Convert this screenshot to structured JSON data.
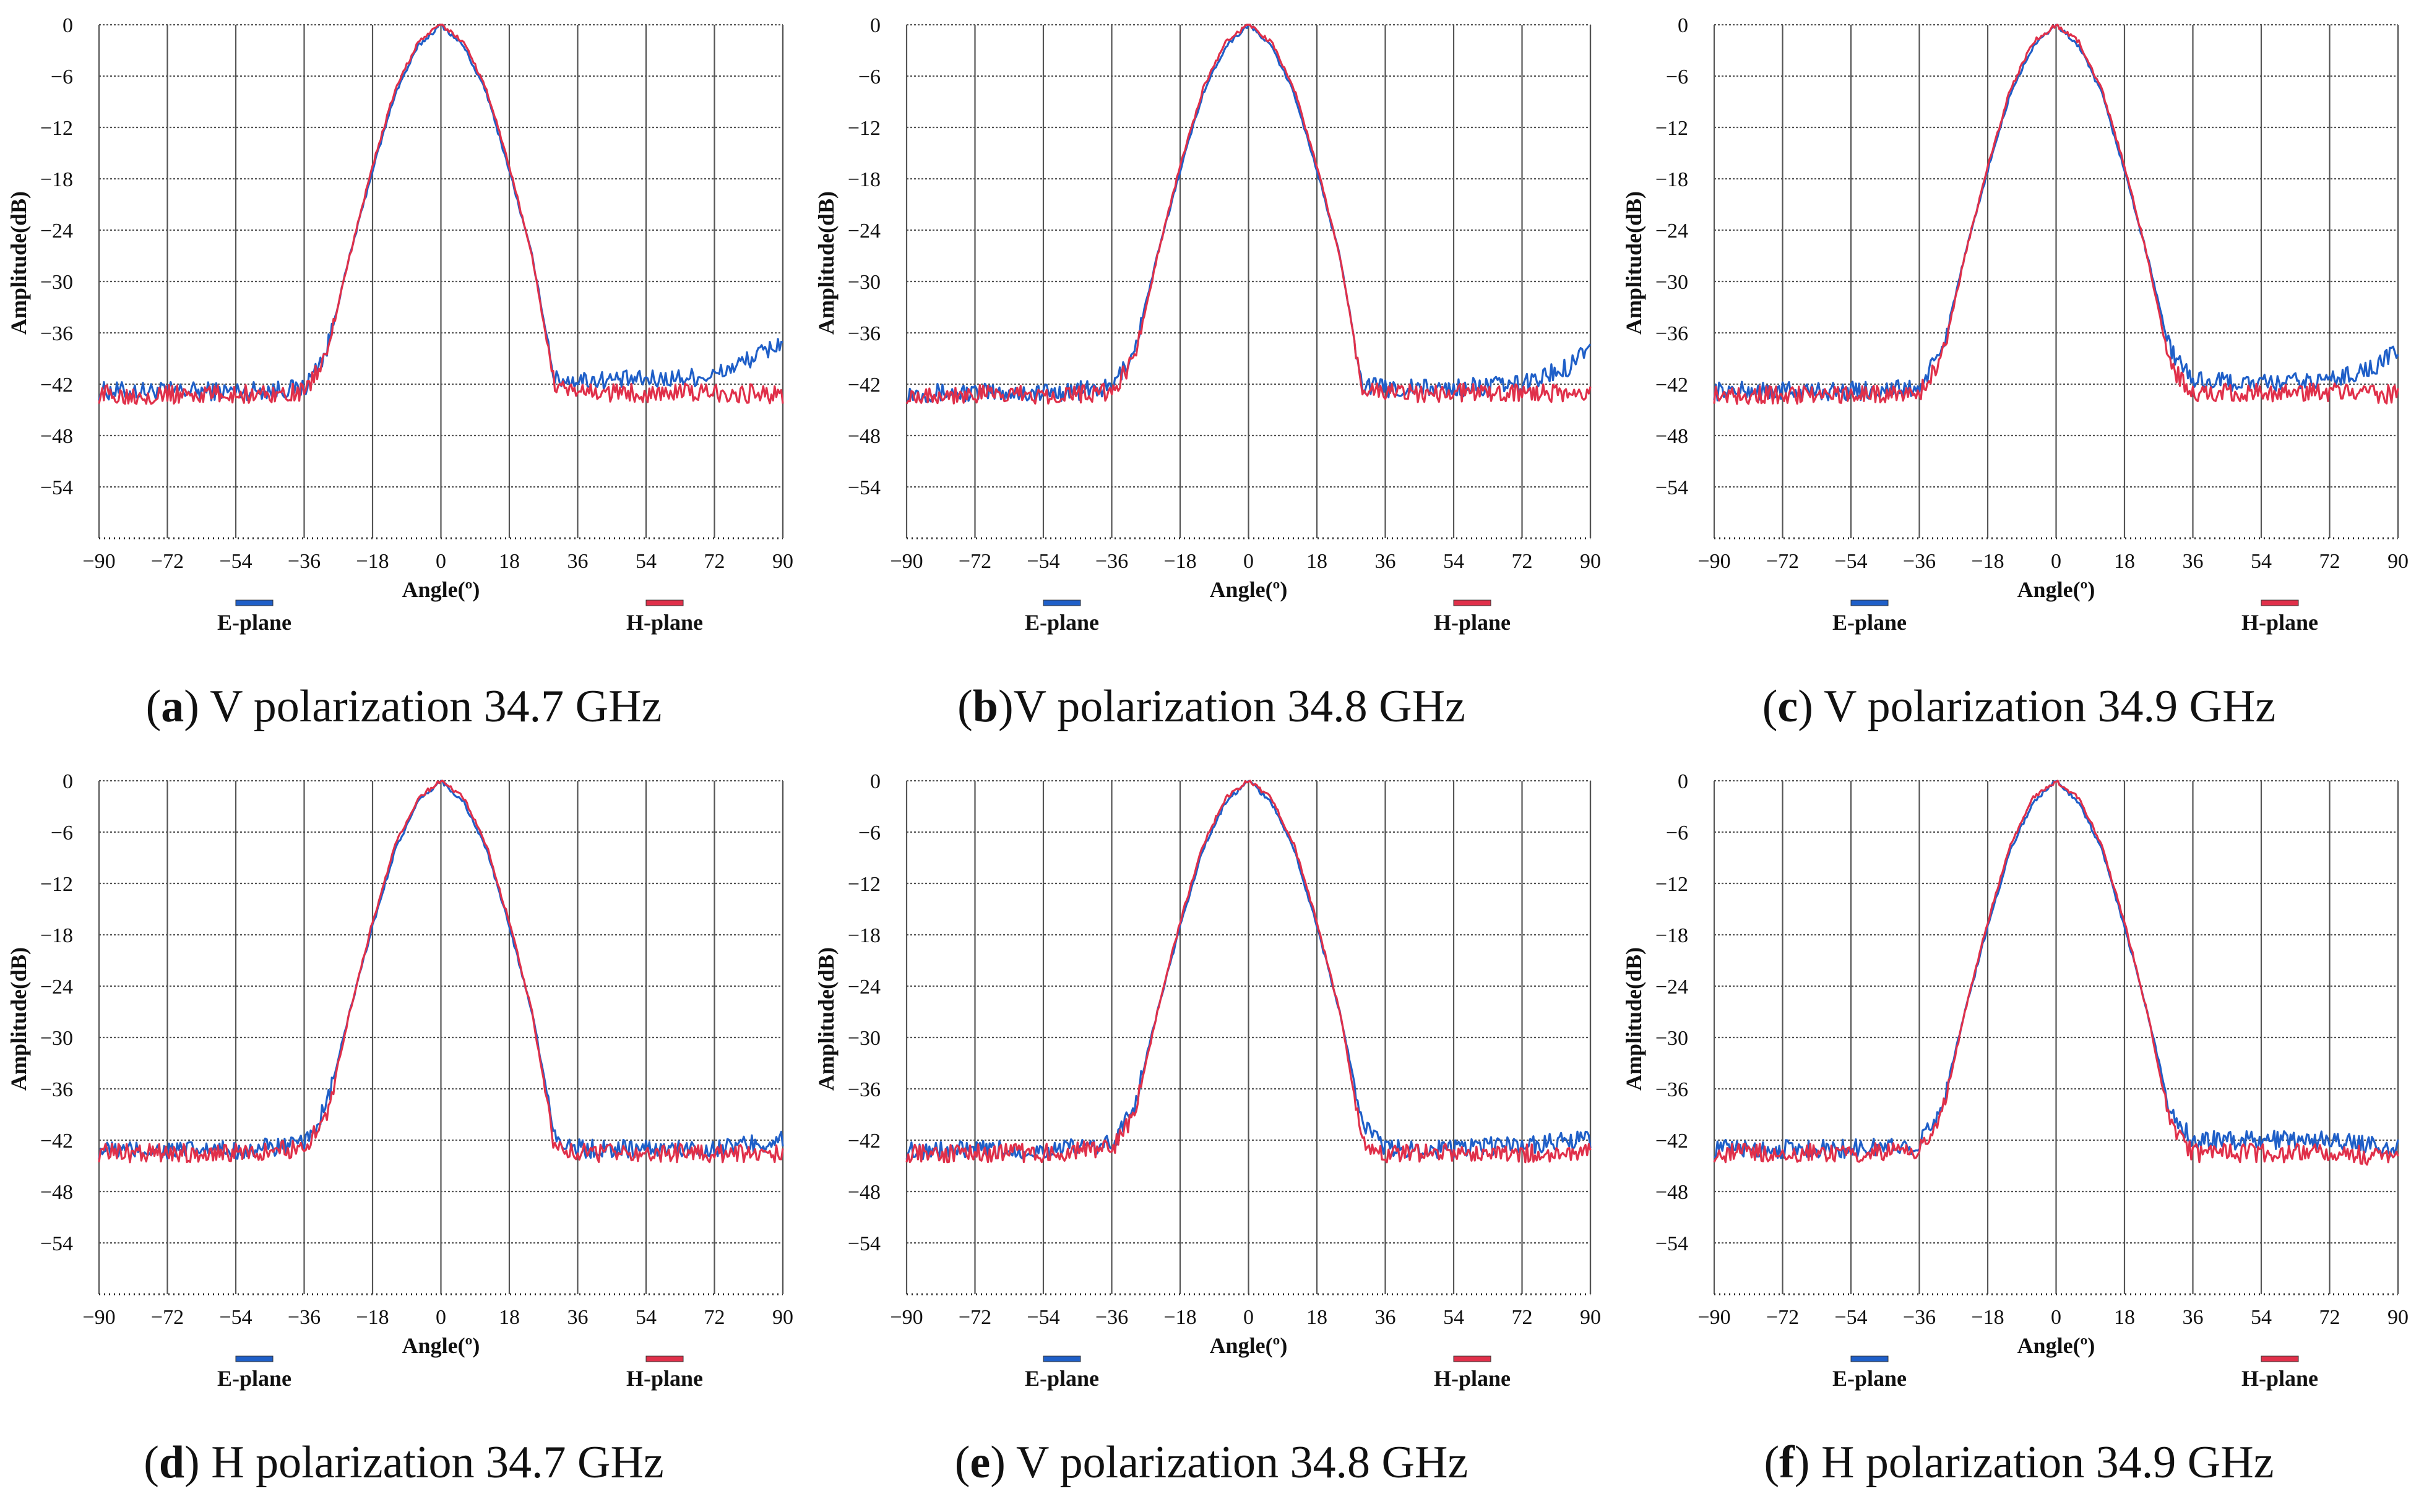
{
  "colors": {
    "e_plane": "#1f5fc8",
    "h_plane": "#e0304a",
    "grid": "#555555",
    "axis": "#222222"
  },
  "chart_data": [
    {
      "type": "line",
      "panel_letter": "a",
      "title": "V polarization 34.7 GHz",
      "xlabel": "Angle(º)",
      "ylabel": "Amplitude(dB)",
      "xlim": [
        -90,
        90
      ],
      "ylim": [
        -60,
        0
      ],
      "x_ticks": [
        "−90",
        "−72",
        "−54",
        "−36",
        "−18",
        "0",
        "18",
        "36",
        "54",
        "72",
        "90"
      ],
      "y_ticks": [
        "0",
        "-6",
        "-12",
        "-18",
        "-24",
        "-30",
        "-36",
        "-42",
        "-48",
        "-54"
      ],
      "grid": true,
      "legend": [
        "E-plane",
        "H-plane"
      ],
      "series": [
        {
          "name": "E-plane",
          "x": [
            -90,
            -54,
            -36,
            -30,
            -24,
            -18,
            -12,
            -6,
            0,
            6,
            12,
            18,
            24,
            30,
            36,
            54,
            72,
            84,
            90
          ],
          "values": [
            -42.8,
            -42.8,
            -42.5,
            -38,
            -27,
            -17,
            -8,
            -2.5,
            0,
            -2.5,
            -8,
            -17,
            -27,
            -41.5,
            -41.5,
            -41.5,
            -41,
            -38.5,
            -37
          ]
        },
        {
          "name": "H-plane",
          "x": [
            -90,
            -54,
            -36,
            -30,
            -24,
            -18,
            -12,
            -6,
            0,
            6,
            12,
            18,
            24,
            30,
            36,
            54,
            72,
            90
          ],
          "values": [
            -43.2,
            -43.2,
            -43,
            -38.5,
            -27,
            -16.5,
            -7.5,
            -2,
            0,
            -2,
            -7.5,
            -16.5,
            -27,
            -42.5,
            -43,
            -43,
            -43,
            -43.2
          ]
        }
      ]
    },
    {
      "type": "line",
      "panel_letter": "b",
      "title": "V polarization 34.8 GHz",
      "xlabel": "Angle(º)",
      "ylabel": "Amplitude(dB)",
      "xlim": [
        -90,
        90
      ],
      "ylim": [
        -60,
        0
      ],
      "x_ticks": [
        "−90",
        "−72",
        "−54",
        "−36",
        "−18",
        "0",
        "18",
        "36",
        "54",
        "72",
        "90"
      ],
      "y_ticks": [
        "0",
        "-6",
        "-12",
        "-18",
        "-24",
        "-30",
        "-36",
        "-42",
        "-48",
        "-54"
      ],
      "grid": true,
      "legend": [
        "E-plane",
        "H-plane"
      ],
      "series": [
        {
          "name": "E-plane",
          "x": [
            -90,
            -54,
            -36,
            -30,
            -24,
            -18,
            -12,
            -6,
            0,
            6,
            12,
            18,
            24,
            30,
            36,
            54,
            72,
            84,
            90
          ],
          "values": [
            -43,
            -43,
            -42.5,
            -38,
            -27,
            -17,
            -8,
            -2.5,
            0,
            -2.5,
            -8,
            -17,
            -27,
            -42,
            -42.5,
            -42.5,
            -42,
            -40,
            -37
          ]
        },
        {
          "name": "H-plane",
          "x": [
            -90,
            -54,
            -36,
            -30,
            -24,
            -18,
            -12,
            -6,
            0,
            6,
            12,
            18,
            24,
            30,
            36,
            54,
            72,
            90
          ],
          "values": [
            -43.2,
            -43.2,
            -43,
            -39,
            -27,
            -16.5,
            -7.5,
            -2,
            0,
            -2,
            -7.5,
            -16.5,
            -27,
            -42.5,
            -43,
            -43,
            -43,
            -43.2
          ]
        }
      ]
    },
    {
      "type": "line",
      "panel_letter": "c",
      "title": "V polarization 34.9 GHz",
      "xlabel": "Angle(º)",
      "ylabel": "Amplitude(dB)",
      "xlim": [
        -90,
        90
      ],
      "ylim": [
        -60,
        0
      ],
      "x_ticks": [
        "−90",
        "−72",
        "−54",
        "−36",
        "−18",
        "0",
        "18",
        "36",
        "54",
        "72",
        "90"
      ],
      "y_ticks": [
        "0",
        "-6",
        "-12",
        "-18",
        "-24",
        "-30",
        "-36",
        "-42",
        "-48",
        "-54"
      ],
      "grid": true,
      "legend": [
        "E-plane",
        "H-plane"
      ],
      "series": [
        {
          "name": "E-plane",
          "x": [
            -90,
            -54,
            -36,
            -30,
            -24,
            -18,
            -12,
            -6,
            0,
            6,
            12,
            18,
            24,
            30,
            36,
            54,
            72,
            84,
            90
          ],
          "values": [
            -42.8,
            -42.8,
            -42.5,
            -38,
            -27,
            -17,
            -8,
            -2.5,
            0,
            -2.5,
            -8,
            -17,
            -27,
            -38,
            -41.5,
            -42,
            -41.5,
            -40,
            -38
          ]
        },
        {
          "name": "H-plane",
          "x": [
            -90,
            -54,
            -36,
            -30,
            -24,
            -18,
            -12,
            -6,
            0,
            6,
            12,
            18,
            24,
            30,
            36,
            54,
            72,
            90
          ],
          "values": [
            -43.2,
            -43.2,
            -43,
            -39,
            -27,
            -16.5,
            -7.5,
            -2,
            0,
            -2,
            -7.5,
            -16.5,
            -27,
            -40,
            -43,
            -43,
            -43,
            -43.2
          ]
        }
      ]
    },
    {
      "type": "line",
      "panel_letter": "d",
      "title": "H polarization 34.7 GHz",
      "xlabel": "Angle(º)",
      "ylabel": "Amplitude(dB)",
      "xlim": [
        -90,
        90
      ],
      "ylim": [
        -60,
        0
      ],
      "x_ticks": [
        "−90",
        "−72",
        "−54",
        "−36",
        "−18",
        "0",
        "18",
        "36",
        "54",
        "72",
        "90"
      ],
      "y_ticks": [
        "0",
        "-6",
        "-12",
        "-18",
        "-24",
        "-30",
        "-36",
        "-42",
        "-48",
        "-54"
      ],
      "grid": true,
      "legend": [
        "E-plane",
        "H-plane"
      ],
      "series": [
        {
          "name": "E-plane",
          "x": [
            -90,
            -54,
            -36,
            -30,
            -24,
            -18,
            -12,
            -6,
            0,
            6,
            12,
            18,
            24,
            30,
            36,
            54,
            72,
            90
          ],
          "values": [
            -43.2,
            -43.2,
            -42.5,
            -38,
            -27,
            -17,
            -8,
            -2.5,
            0,
            -2.5,
            -8,
            -17,
            -27,
            -41.5,
            -43,
            -43,
            -43,
            -42
          ]
        },
        {
          "name": "H-plane",
          "x": [
            -90,
            -54,
            -36,
            -30,
            -24,
            -18,
            -12,
            -6,
            0,
            6,
            12,
            18,
            24,
            30,
            36,
            54,
            72,
            90
          ],
          "values": [
            -43.5,
            -43.5,
            -43,
            -39,
            -27,
            -16.5,
            -7.5,
            -2,
            0,
            -2,
            -7.5,
            -16.5,
            -27,
            -43,
            -43.5,
            -43.5,
            -43.5,
            -43.5
          ]
        }
      ]
    },
    {
      "type": "line",
      "panel_letter": "e",
      "title": "V polarization 34.8 GHz",
      "xlabel": "Angle(º)",
      "ylabel": "Amplitude(dB)",
      "xlim": [
        -90,
        90
      ],
      "ylim": [
        -60,
        0
      ],
      "x_ticks": [
        "−90",
        "−72",
        "−54",
        "−36",
        "−18",
        "0",
        "18",
        "36",
        "54",
        "72",
        "90"
      ],
      "y_ticks": [
        "0",
        "-6",
        "-12",
        "-18",
        "-24",
        "-30",
        "-36",
        "-42",
        "-48",
        "-54"
      ],
      "grid": true,
      "legend": [
        "E-plane",
        "H-plane"
      ],
      "series": [
        {
          "name": "E-plane",
          "x": [
            -90,
            -54,
            -36,
            -30,
            -24,
            -18,
            -12,
            -6,
            0,
            6,
            12,
            18,
            24,
            30,
            36,
            54,
            72,
            90
          ],
          "values": [
            -43.2,
            -43.2,
            -42.5,
            -38,
            -27,
            -17,
            -8,
            -2.5,
            0,
            -2.5,
            -8,
            -17,
            -27,
            -40,
            -43,
            -43,
            -42.5,
            -42
          ]
        },
        {
          "name": "H-plane",
          "x": [
            -90,
            -54,
            -36,
            -30,
            -24,
            -18,
            -12,
            -6,
            0,
            6,
            12,
            18,
            24,
            30,
            36,
            54,
            72,
            90
          ],
          "values": [
            -43.5,
            -43.5,
            -43,
            -39,
            -27,
            -16.5,
            -7.5,
            -2,
            0,
            -2,
            -7.5,
            -16.5,
            -27,
            -42,
            -43.5,
            -43.5,
            -43.5,
            -43.5
          ]
        }
      ]
    },
    {
      "type": "line",
      "panel_letter": "f",
      "title": "H polarization 34.9 GHz",
      "xlabel": "Angle(º)",
      "ylabel": "Amplitude(dB)",
      "xlim": [
        -90,
        90
      ],
      "ylim": [
        -60,
        0
      ],
      "x_ticks": [
        "−90",
        "−72",
        "−54",
        "−36",
        "−18",
        "0",
        "18",
        "36",
        "54",
        "72",
        "90"
      ],
      "y_ticks": [
        "0",
        "-6",
        "-12",
        "-18",
        "-24",
        "-30",
        "-36",
        "-42",
        "-48",
        "-54"
      ],
      "grid": true,
      "legend": [
        "E-plane",
        "H-plane"
      ],
      "series": [
        {
          "name": "E-plane",
          "x": [
            -90,
            -54,
            -36,
            -30,
            -24,
            -18,
            -12,
            -6,
            0,
            6,
            12,
            18,
            24,
            30,
            36,
            54,
            72,
            90
          ],
          "values": [
            -43,
            -43,
            -42.5,
            -38,
            -27,
            -17,
            -8,
            -2.5,
            0,
            -2.5,
            -8,
            -17,
            -27,
            -38.5,
            -42,
            -42,
            -42,
            -43
          ]
        },
        {
          "name": "H-plane",
          "x": [
            -90,
            -54,
            -36,
            -30,
            -24,
            -18,
            -12,
            -6,
            0,
            6,
            12,
            18,
            24,
            30,
            36,
            54,
            72,
            90
          ],
          "values": [
            -43.5,
            -43.5,
            -43,
            -39,
            -27,
            -16.5,
            -7.5,
            -2,
            0,
            -2,
            -7.5,
            -16.5,
            -27,
            -40,
            -43.5,
            -43.5,
            -43.5,
            -44
          ]
        }
      ]
    }
  ]
}
